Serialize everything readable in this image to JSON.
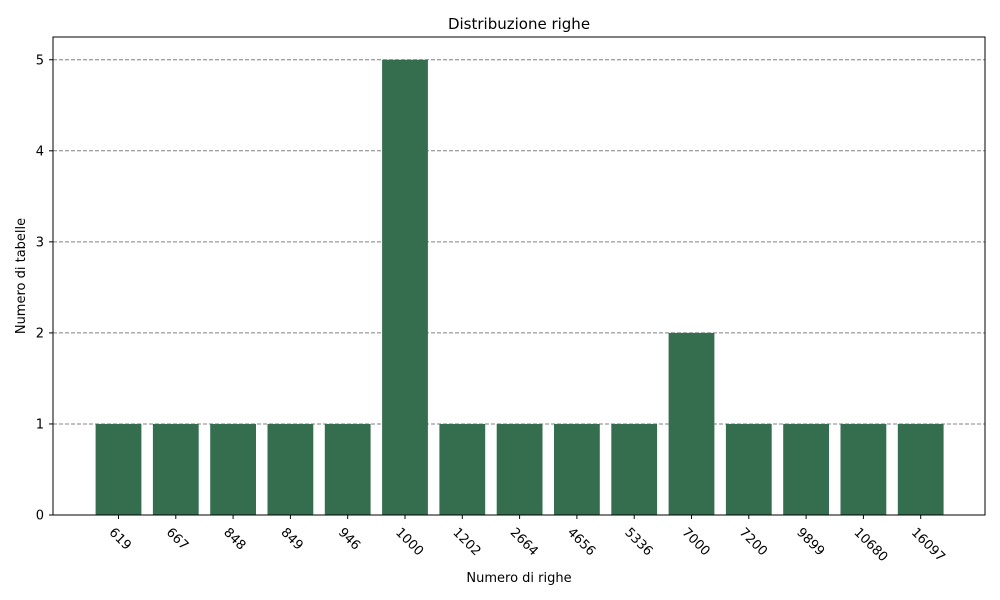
{
  "chart_data": {
    "type": "bar",
    "title": "Distribuzione righe",
    "xlabel": "Numero di righe",
    "ylabel": "Numero di tabelle",
    "categories": [
      "619",
      "667",
      "848",
      "849",
      "946",
      "1000",
      "1202",
      "2664",
      "4656",
      "5336",
      "7000",
      "7200",
      "9899",
      "10680",
      "16097"
    ],
    "values": [
      1,
      1,
      1,
      1,
      1,
      5,
      1,
      1,
      1,
      1,
      2,
      1,
      1,
      1,
      1
    ],
    "ylim": [
      0,
      5.25
    ],
    "yticks": [
      0,
      1,
      2,
      3,
      4,
      5
    ],
    "grid": "y-dashed",
    "bar_color": "#356e4f",
    "grid_color": "#808080"
  }
}
